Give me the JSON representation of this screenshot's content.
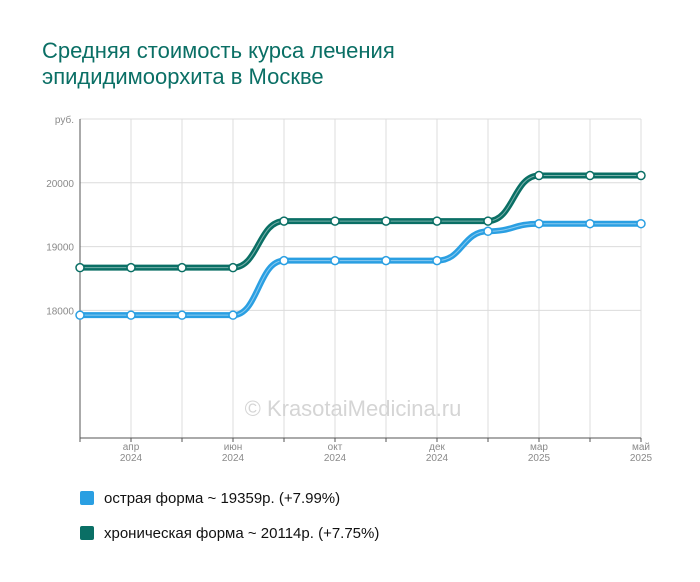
{
  "chart_data": {
    "type": "line",
    "title_lines": [
      "Средняя стоимость курса лечения",
      "эпидидимоорхита в Москве"
    ],
    "y_unit": "руб.",
    "y_ticks": [
      "18000",
      "19000",
      "20000"
    ],
    "ylim": [
      16000,
      21000
    ],
    "x_ticks": [
      {
        "month": "апр",
        "year": "2024",
        "index": 1
      },
      {
        "month": "июн",
        "year": "2024",
        "index": 3
      },
      {
        "month": "окт",
        "year": "2024",
        "index": 5
      },
      {
        "month": "дек",
        "year": "2024",
        "index": 7
      },
      {
        "month": "мар",
        "year": "2025",
        "index": 9
      },
      {
        "month": "май",
        "year": "2025",
        "index": 11
      }
    ],
    "grid": true,
    "series": [
      {
        "name": "острая форма",
        "color": "#2a9fe2",
        "values": [
          17925,
          17925,
          17925,
          17925,
          18780,
          18780,
          18780,
          18780,
          19240,
          19359,
          19359,
          19359
        ],
        "legend": "острая форма ~ 19359р. (+7.99%)"
      },
      {
        "name": "хроническая форма",
        "color": "#0a6f65",
        "values": [
          18670,
          18670,
          18670,
          18670,
          19400,
          19400,
          19400,
          19400,
          19400,
          20114,
          20114,
          20114
        ],
        "legend": "хроническая форма ~ 20114р. (+7.75%)"
      }
    ],
    "watermark": "© KrasotaiMedicina.ru",
    "legend_position": "bottom-left"
  }
}
